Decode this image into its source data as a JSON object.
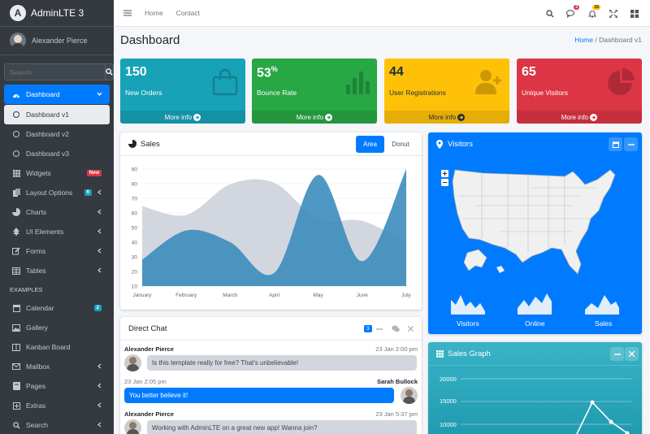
{
  "brand": {
    "name": "AdminLTE 3",
    "logo_letter": "A"
  },
  "user": {
    "name": "Alexander Pierce"
  },
  "sidebar_search": {
    "placeholder": "Search"
  },
  "nav": {
    "dashboard": "Dashboard",
    "dashboard_v1": "Dashboard v1",
    "dashboard_v2": "Dashboard v2",
    "dashboard_v3": "Dashboard v3",
    "widgets": "Widgets",
    "widgets_badge": "New",
    "layout_options": "Layout Options",
    "layout_badge": "6",
    "charts": "Charts",
    "ui_elements": "UI Elements",
    "forms": "Forms",
    "tables": "Tables",
    "examples_header": "EXAMPLES",
    "calendar": "Calendar",
    "calendar_badge": "2",
    "gallery": "Gallery",
    "kanban": "Kanban Board",
    "mailbox": "Mailbox",
    "pages": "Pages",
    "extras": "Extras",
    "search": "Search"
  },
  "topnav": {
    "home": "Home",
    "contact": "Contact",
    "messages_badge": "3",
    "notifications_badge": "15"
  },
  "page": {
    "title": "Dashboard",
    "breadcrumb_home": "Home",
    "breadcrumb_current": "Dashboard v1"
  },
  "stats": [
    {
      "value": "150",
      "suffix": "",
      "label": "New Orders",
      "more": "More info",
      "color": "#17a2b8"
    },
    {
      "value": "53",
      "suffix": "%",
      "label": "Bounce Rate",
      "more": "More info",
      "color": "#28a745"
    },
    {
      "value": "44",
      "suffix": "",
      "label": "User Registrations",
      "more": "More info",
      "color": "#ffc107"
    },
    {
      "value": "65",
      "suffix": "",
      "label": "Unique Visitors",
      "more": "More info",
      "color": "#dc3545"
    }
  ],
  "sales": {
    "title": "Sales",
    "tab_area": "Area",
    "tab_donut": "Donut"
  },
  "chart_data": {
    "type": "area",
    "categories": [
      "January",
      "February",
      "March",
      "April",
      "May",
      "June",
      "July"
    ],
    "yticks": [
      "90",
      "80",
      "70",
      "60",
      "50",
      "40",
      "30",
      "20",
      "10"
    ],
    "ylim": [
      10,
      90
    ],
    "series": [
      {
        "values": [
          28,
          48,
          40,
          19,
          86,
          27,
          90
        ],
        "color": "#3c8dbc"
      },
      {
        "values": [
          65,
          59,
          80,
          81,
          56,
          55,
          40
        ],
        "color": "#d2d6de"
      }
    ]
  },
  "visitors": {
    "title": "Visitors",
    "labels": [
      "Visitors",
      "Online",
      "Sales"
    ]
  },
  "chat": {
    "title": "Direct Chat",
    "badge": "3",
    "messages": [
      {
        "name": "Alexander Pierce",
        "time": "23 Jan 2:00 pm",
        "text": "Is this template really for free? That's unbelievable!"
      },
      {
        "name": "Sarah Bullock",
        "time": "23 Jan 2:05 pm",
        "text": "You better believe it!"
      },
      {
        "name": "Alexander Pierce",
        "time": "23 Jan 5:37 pm",
        "text": "Working with AdminLTE on a great new app! Wanna join?"
      }
    ]
  },
  "sales_graph": {
    "title": "Sales Graph",
    "yticks": [
      "20000",
      "15000",
      "10000"
    ]
  }
}
